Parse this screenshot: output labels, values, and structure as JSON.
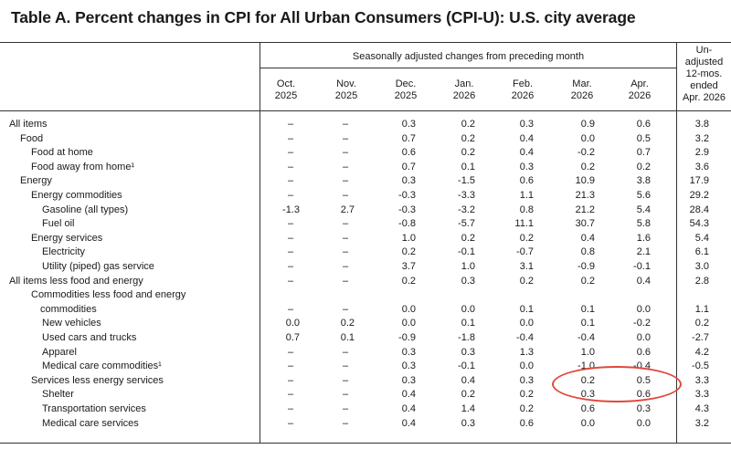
{
  "title": "Table A. Percent changes in CPI for All Urban Consumers (CPI-U): U.S. city average",
  "header": {
    "group_label": "Seasonally adjusted changes from preceding month",
    "columns": [
      {
        "l1": "Oct.",
        "l2": "2025"
      },
      {
        "l1": "Nov.",
        "l2": "2025"
      },
      {
        "l1": "Dec.",
        "l2": "2025"
      },
      {
        "l1": "Jan.",
        "l2": "2026"
      },
      {
        "l1": "Feb.",
        "l2": "2026"
      },
      {
        "l1": "Mar.",
        "l2": "2026"
      },
      {
        "l1": "Apr.",
        "l2": "2026"
      }
    ],
    "unadjusted": {
      "l1": "Un-",
      "l2": "adjusted",
      "l3": "12-mos.",
      "l4": "ended",
      "l5": "Apr. 2026"
    }
  },
  "rows": [
    {
      "label": "All items",
      "indent": 0,
      "values": [
        "–",
        "–",
        "0.3",
        "0.2",
        "0.3",
        "0.9",
        "0.6",
        "3.8"
      ]
    },
    {
      "label": "Food",
      "indent": 1,
      "values": [
        "–",
        "–",
        "0.7",
        "0.2",
        "0.4",
        "0.0",
        "0.5",
        "3.2"
      ]
    },
    {
      "label": "Food at home",
      "indent": 2,
      "values": [
        "–",
        "–",
        "0.6",
        "0.2",
        "0.4",
        "-0.2",
        "0.7",
        "2.9"
      ]
    },
    {
      "label": "Food away from home¹",
      "indent": 2,
      "values": [
        "–",
        "–",
        "0.7",
        "0.1",
        "0.3",
        "0.2",
        "0.2",
        "3.6"
      ]
    },
    {
      "label": "Energy",
      "indent": 1,
      "values": [
        "–",
        "–",
        "0.3",
        "-1.5",
        "0.6",
        "10.9",
        "3.8",
        "17.9"
      ]
    },
    {
      "label": "Energy commodities",
      "indent": 2,
      "values": [
        "–",
        "–",
        "-0.3",
        "-3.3",
        "1.1",
        "21.3",
        "5.6",
        "29.2"
      ]
    },
    {
      "label": "Gasoline (all types)",
      "indent": 3,
      "values": [
        "-1.3",
        "2.7",
        "-0.3",
        "-3.2",
        "0.8",
        "21.2",
        "5.4",
        "28.4"
      ]
    },
    {
      "label": "Fuel oil",
      "indent": 3,
      "values": [
        "–",
        "–",
        "-0.8",
        "-5.7",
        "11.1",
        "30.7",
        "5.8",
        "54.3"
      ]
    },
    {
      "label": "Energy services",
      "indent": 2,
      "values": [
        "–",
        "–",
        "1.0",
        "0.2",
        "0.2",
        "0.4",
        "1.6",
        "5.4"
      ]
    },
    {
      "label": "Electricity",
      "indent": 3,
      "values": [
        "–",
        "–",
        "0.2",
        "-0.1",
        "-0.7",
        "0.8",
        "2.1",
        "6.1"
      ]
    },
    {
      "label": "Utility (piped) gas service",
      "indent": 3,
      "values": [
        "–",
        "–",
        "3.7",
        "1.0",
        "3.1",
        "-0.9",
        "-0.1",
        "3.0"
      ]
    },
    {
      "label": "All items less food and energy",
      "indent": 0,
      "values": [
        "–",
        "–",
        "0.2",
        "0.3",
        "0.2",
        "0.2",
        "0.4",
        "2.8"
      ]
    },
    {
      "label": "Commodities less food and energy",
      "label2": "commodities",
      "indent": 2,
      "values": [
        "–",
        "–",
        "0.0",
        "0.0",
        "0.1",
        "0.1",
        "0.0",
        "1.1"
      ]
    },
    {
      "label": "New vehicles",
      "indent": 3,
      "values": [
        "0.0",
        "0.2",
        "0.0",
        "0.1",
        "0.0",
        "0.1",
        "-0.2",
        "0.2"
      ]
    },
    {
      "label": "Used cars and trucks",
      "indent": 3,
      "values": [
        "0.7",
        "0.1",
        "-0.9",
        "-1.8",
        "-0.4",
        "-0.4",
        "0.0",
        "-2.7"
      ]
    },
    {
      "label": "Apparel",
      "indent": 3,
      "values": [
        "–",
        "–",
        "0.3",
        "0.3",
        "1.3",
        "1.0",
        "0.6",
        "4.2"
      ]
    },
    {
      "label": "Medical care commodities¹",
      "indent": 3,
      "values": [
        "–",
        "–",
        "0.3",
        "-0.1",
        "0.0",
        "-1.0",
        "-0.4",
        "-0.5"
      ]
    },
    {
      "label": "Services less energy services",
      "indent": 2,
      "values": [
        "–",
        "–",
        "0.3",
        "0.4",
        "0.3",
        "0.2",
        "0.5",
        "3.3"
      ]
    },
    {
      "label": "Shelter",
      "indent": 3,
      "values": [
        "–",
        "–",
        "0.4",
        "0.2",
        "0.2",
        "0.3",
        "0.6",
        "3.3"
      ]
    },
    {
      "label": "Transportation services",
      "indent": 3,
      "values": [
        "–",
        "–",
        "0.4",
        "1.4",
        "0.2",
        "0.6",
        "0.3",
        "4.3"
      ]
    },
    {
      "label": "Medical care services",
      "indent": 3,
      "values": [
        "–",
        "–",
        "0.4",
        "0.3",
        "0.6",
        "0.0",
        "0.0",
        "3.2"
      ]
    }
  ],
  "annotation": {
    "color": "#e3463c"
  }
}
